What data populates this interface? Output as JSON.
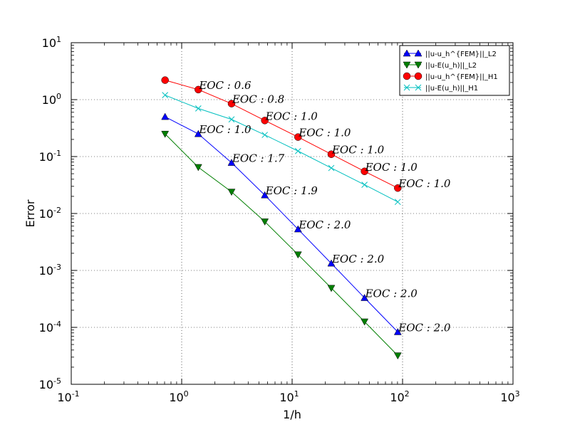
{
  "chart_data": {
    "type": "line",
    "scale": "log-log",
    "xlabel": "1/h",
    "ylabel": "Error",
    "xlim_exp": [
      -1,
      3
    ],
    "ylim_exp": [
      -5,
      1
    ],
    "x_ticks": [
      {
        "base": "10",
        "exp": "-1"
      },
      {
        "base": "10",
        "exp": "0"
      },
      {
        "base": "10",
        "exp": "1"
      },
      {
        "base": "10",
        "exp": "2"
      },
      {
        "base": "10",
        "exp": "3"
      }
    ],
    "y_ticks": [
      {
        "base": "10",
        "exp": "-5"
      },
      {
        "base": "10",
        "exp": "-4"
      },
      {
        "base": "10",
        "exp": "-3"
      },
      {
        "base": "10",
        "exp": "-2"
      },
      {
        "base": "10",
        "exp": "-1"
      },
      {
        "base": "10",
        "exp": "0"
      },
      {
        "base": "10",
        "exp": "1"
      }
    ],
    "grid": true,
    "legend_position": "top-right",
    "x": [
      0.707,
      1.414,
      2.828,
      5.657,
      11.31,
      22.63,
      45.25,
      90.51
    ],
    "series": [
      {
        "name": "||u-u_h^{FEM}||_L2",
        "color": "#0000ff",
        "marker": "triangle-up",
        "values": [
          0.5,
          0.25,
          0.078,
          0.021,
          0.0053,
          0.00133,
          0.00033,
          8.3e-05
        ],
        "eoc": [
          "EOC : 1.0",
          "EOC : 1.7",
          "EOC : 1.9",
          "EOC : 2.0",
          "EOC : 2.0",
          "EOC : 2.0",
          "EOC : 2.0"
        ]
      },
      {
        "name": "||u-E(u_h)||_L2",
        "color": "#007f00",
        "marker": "triangle-down",
        "values": [
          0.25,
          0.065,
          0.024,
          0.0072,
          0.0019,
          0.00049,
          0.000126,
          3.2e-05
        ],
        "eoc": []
      },
      {
        "name": "||u-u_h^{FEM}||_H1",
        "color": "#ff0000",
        "marker": "circle",
        "values": [
          2.2,
          1.5,
          0.85,
          0.43,
          0.22,
          0.11,
          0.055,
          0.028
        ],
        "eoc": [
          "EOC : 0.6",
          "EOC : 0.8",
          "EOC : 1.0",
          "EOC : 1.0",
          "EOC : 1.0",
          "EOC : 1.0",
          "EOC : 1.0"
        ]
      },
      {
        "name": "||u-E(u_h)||_H1",
        "color": "#00bfbf",
        "marker": "x",
        "values": [
          1.2,
          0.7,
          0.45,
          0.24,
          0.125,
          0.063,
          0.032,
          0.016
        ],
        "eoc": []
      }
    ]
  }
}
